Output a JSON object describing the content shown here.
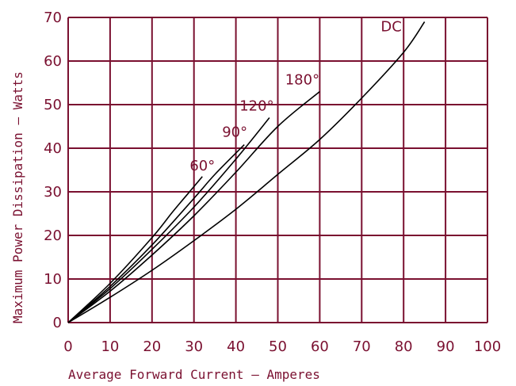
{
  "chart_data": {
    "type": "line",
    "title": "",
    "xlabel": "Average Forward Current – Amperes",
    "ylabel": "Maximum Power Dissipation – Watts",
    "xlim": [
      0,
      100
    ],
    "ylim": [
      0,
      70
    ],
    "x_ticks": [
      "0",
      "10",
      "20",
      "30",
      "40",
      "50",
      "60",
      "70",
      "80",
      "90",
      "100"
    ],
    "y_ticks": [
      "0",
      "10",
      "20",
      "30",
      "40",
      "50",
      "60",
      "70"
    ],
    "grid": true,
    "series": [
      {
        "name": "60°",
        "points": [
          [
            0,
            0
          ],
          [
            10,
            9
          ],
          [
            20,
            19.5
          ],
          [
            25,
            25.5
          ],
          [
            30,
            31.2
          ],
          [
            32,
            33.5
          ]
        ]
      },
      {
        "name": "90°",
        "points": [
          [
            0,
            0
          ],
          [
            10,
            8.3
          ],
          [
            20,
            17.8
          ],
          [
            30,
            28.5
          ],
          [
            35,
            34
          ],
          [
            42,
            40.8
          ]
        ]
      },
      {
        "name": "120°",
        "points": [
          [
            0,
            0
          ],
          [
            10,
            7.8
          ],
          [
            20,
            16.8
          ],
          [
            30,
            26.5
          ],
          [
            40,
            37.5
          ],
          [
            48,
            47
          ]
        ]
      },
      {
        "name": "180°",
        "points": [
          [
            0,
            0
          ],
          [
            10,
            7.2
          ],
          [
            20,
            15.5
          ],
          [
            30,
            24.5
          ],
          [
            40,
            34.5
          ],
          [
            50,
            45
          ],
          [
            60,
            53
          ]
        ]
      },
      {
        "name": "DC",
        "points": [
          [
            0,
            0
          ],
          [
            10,
            5.8
          ],
          [
            20,
            12
          ],
          [
            30,
            18.8
          ],
          [
            40,
            26
          ],
          [
            50,
            34
          ],
          [
            60,
            42
          ],
          [
            70,
            51.5
          ],
          [
            80,
            62
          ],
          [
            85,
            69
          ]
        ]
      }
    ]
  }
}
